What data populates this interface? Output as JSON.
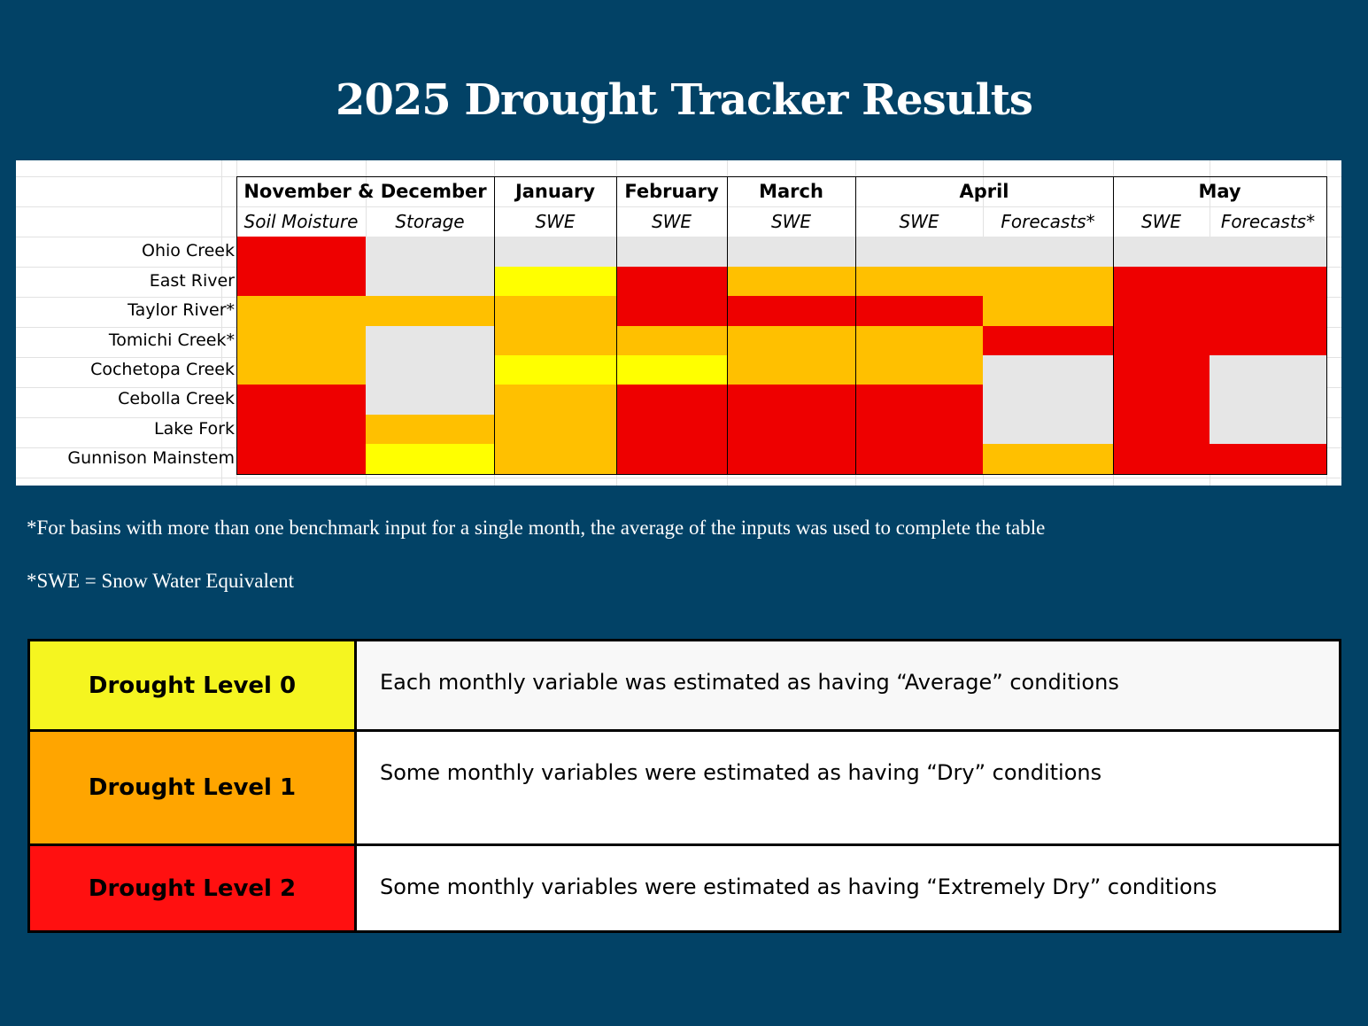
{
  "title": "2025 Drought Tracker Results",
  "table": {
    "groups": [
      {
        "label": "November & December",
        "columns": [
          "Soil Moisture",
          "Storage"
        ]
      },
      {
        "label": "January",
        "columns": [
          "SWE"
        ]
      },
      {
        "label": "February",
        "columns": [
          "SWE"
        ]
      },
      {
        "label": "March",
        "columns": [
          "SWE"
        ]
      },
      {
        "label": "April",
        "columns": [
          "SWE",
          "Forecasts*"
        ]
      },
      {
        "label": "May",
        "columns": [
          "SWE",
          "Forecasts*"
        ]
      }
    ],
    "level_colors": [
      "#ffff00",
      "#ffc000",
      "#ee0000"
    ],
    "no_data_color": "#e6e6e6",
    "rows": [
      {
        "name": "Ohio Creek",
        "levels": [
          2,
          null,
          null,
          null,
          null,
          null,
          null,
          null,
          null
        ]
      },
      {
        "name": "East River",
        "levels": [
          2,
          null,
          0,
          2,
          1,
          1,
          1,
          2,
          2
        ]
      },
      {
        "name": "Taylor River*",
        "levels": [
          1,
          1,
          1,
          2,
          2,
          2,
          1,
          2,
          2
        ]
      },
      {
        "name": "Tomichi Creek*",
        "levels": [
          1,
          null,
          1,
          1,
          1,
          1,
          2,
          2,
          2
        ]
      },
      {
        "name": "Cochetopa Creek",
        "levels": [
          1,
          null,
          0,
          0,
          1,
          1,
          null,
          2,
          null
        ]
      },
      {
        "name": "Cebolla Creek",
        "levels": [
          2,
          null,
          1,
          2,
          2,
          2,
          null,
          2,
          null
        ]
      },
      {
        "name": "Lake Fork",
        "levels": [
          2,
          1,
          1,
          2,
          2,
          2,
          null,
          2,
          null
        ]
      },
      {
        "name": "Gunnison Mainstem",
        "levels": [
          2,
          0,
          1,
          2,
          2,
          2,
          1,
          2,
          2
        ]
      }
    ]
  },
  "notes": [
    "*For basins with more than one benchmark input for a single month, the average of  the inputs was used to complete the table",
    "*SWE = Snow Water Equivalent"
  ],
  "legend": [
    {
      "label": "Drought Level 0",
      "description": "Each monthly variable was estimated as having “Average” conditions",
      "color": "#f5f520"
    },
    {
      "label": "Drought Level 1",
      "description": "Some monthly variables were estimated as having “Dry” conditions",
      "color": "#ffa500"
    },
    {
      "label": "Drought Level 2",
      "description": "Some monthly variables were estimated as having “Extremely Dry” conditions",
      "color": "#ff1010"
    }
  ]
}
